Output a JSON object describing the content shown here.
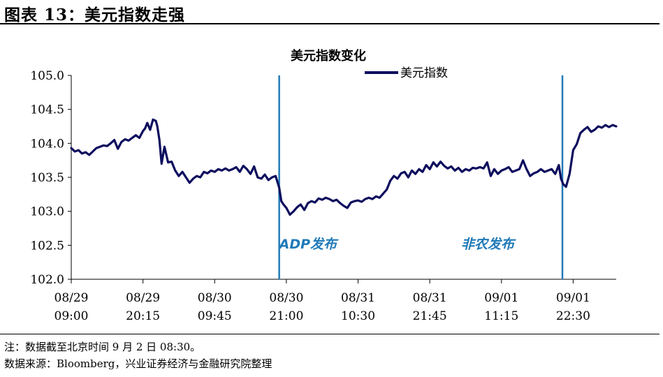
{
  "header": {
    "figure_title": "图表 13：美元指数走强"
  },
  "chart_data": {
    "type": "line",
    "title": "美元指数变化",
    "legend": [
      "美元指数"
    ],
    "legend_position": "top-center",
    "ylim": [
      102.0,
      105.0
    ],
    "yticks": [
      "105.0",
      "104.5",
      "104.0",
      "103.5",
      "103.0",
      "102.5",
      "102.0"
    ],
    "ytick_values": [
      105.0,
      104.5,
      104.0,
      103.5,
      103.0,
      102.5,
      102.0
    ],
    "xticks": [
      {
        "date": "08/29",
        "time": "09:00"
      },
      {
        "date": "08/29",
        "time": "20:15"
      },
      {
        "date": "08/30",
        "time": "09:45"
      },
      {
        "date": "08/30",
        "time": "21:00"
      },
      {
        "date": "08/31",
        "time": "10:30"
      },
      {
        "date": "08/31",
        "time": "21:45"
      },
      {
        "date": "09/01",
        "time": "11:15"
      },
      {
        "date": "09/01",
        "time": "22:30"
      }
    ],
    "x_range": [
      0,
      76
    ],
    "tick_positions": [
      0,
      10,
      20,
      30,
      40,
      50,
      60,
      70
    ],
    "annotations": [
      {
        "label": "ADP发布",
        "x": 29,
        "color": "#1f7ab8"
      },
      {
        "label": "非农发布",
        "x": 68.5,
        "color": "#1f7ab8"
      }
    ],
    "series": [
      {
        "name": "美元指数",
        "color": "#0d0d5e",
        "x": [
          0,
          0.5,
          1,
          1.5,
          2,
          2.5,
          3,
          3.5,
          4,
          4.5,
          5,
          5.5,
          6,
          6.5,
          7,
          7.5,
          8,
          8.5,
          9,
          9.5,
          10,
          10.3,
          10.6,
          11,
          11.4,
          11.8,
          12,
          12.3,
          12.6,
          13,
          13.5,
          14,
          14.5,
          15,
          15.5,
          16,
          16.5,
          17,
          17.5,
          18,
          18.5,
          19,
          19.5,
          20,
          20.5,
          21,
          21.5,
          22,
          22.5,
          23,
          23.5,
          24,
          24.5,
          25,
          25.5,
          26,
          26.5,
          27,
          27.5,
          28,
          28.5,
          29,
          29.3,
          29.6,
          30,
          30.5,
          31,
          31.5,
          32,
          32.5,
          33,
          33.5,
          34,
          34.5,
          35,
          35.5,
          36,
          36.5,
          37,
          37.5,
          38,
          38.5,
          39,
          39.5,
          40,
          40.5,
          41,
          41.5,
          42,
          42.5,
          43,
          43.5,
          44,
          44.5,
          45,
          45.5,
          46,
          46.5,
          47,
          47.5,
          48,
          48.5,
          49,
          49.5,
          50,
          50.5,
          51,
          51.5,
          52,
          52.5,
          53,
          53.5,
          54,
          54.5,
          55,
          55.5,
          56,
          56.5,
          57,
          57.5,
          58,
          58.5,
          59,
          59.5,
          60,
          60.5,
          61,
          61.5,
          62,
          62.5,
          63,
          63.5,
          64,
          64.5,
          65,
          65.5,
          66,
          66.5,
          67,
          67.5,
          68,
          68.3,
          68.6,
          69,
          69.5,
          70,
          70.5,
          71,
          71.5,
          72,
          72.5,
          73,
          73.5,
          74,
          74.5,
          75,
          75.5,
          76
        ],
        "values": [
          103.93,
          103.88,
          103.9,
          103.85,
          103.87,
          103.83,
          103.88,
          103.93,
          103.95,
          103.97,
          103.96,
          104.0,
          104.05,
          103.92,
          104.02,
          104.06,
          104.04,
          104.08,
          104.12,
          104.08,
          104.18,
          104.22,
          104.3,
          104.2,
          104.35,
          104.33,
          104.25,
          104.05,
          103.7,
          103.95,
          103.72,
          103.73,
          103.6,
          103.52,
          103.58,
          103.5,
          103.42,
          103.48,
          103.52,
          103.5,
          103.58,
          103.56,
          103.6,
          103.58,
          103.62,
          103.6,
          103.63,
          103.6,
          103.62,
          103.65,
          103.58,
          103.67,
          103.62,
          103.55,
          103.66,
          103.5,
          103.48,
          103.54,
          103.46,
          103.5,
          103.52,
          103.35,
          103.15,
          103.1,
          103.05,
          102.95,
          103.0,
          103.06,
          103.1,
          103.02,
          103.12,
          103.15,
          103.13,
          103.19,
          103.17,
          103.2,
          103.18,
          103.15,
          103.17,
          103.12,
          103.08,
          103.05,
          103.13,
          103.15,
          103.16,
          103.14,
          103.18,
          103.2,
          103.18,
          103.22,
          103.2,
          103.26,
          103.32,
          103.45,
          103.52,
          103.48,
          103.56,
          103.58,
          103.5,
          103.6,
          103.55,
          103.62,
          103.58,
          103.68,
          103.62,
          103.72,
          103.66,
          103.73,
          103.67,
          103.63,
          103.66,
          103.6,
          103.64,
          103.58,
          103.62,
          103.6,
          103.64,
          103.63,
          103.65,
          103.63,
          103.72,
          103.52,
          103.62,
          103.55,
          103.6,
          103.62,
          103.65,
          103.58,
          103.6,
          103.62,
          103.75,
          103.62,
          103.52,
          103.56,
          103.58,
          103.62,
          103.58,
          103.6,
          103.62,
          103.55,
          103.68,
          103.48,
          103.4,
          103.36,
          103.55,
          103.9,
          103.99,
          104.15,
          104.2,
          104.24,
          104.17,
          104.2,
          104.25,
          104.23,
          104.27,
          104.24,
          104.27,
          104.25
        ]
      }
    ]
  },
  "notes": {
    "line1": "注：数据截至北京时间 9 月 2 日 08:30。",
    "line2": "数据来源：Bloomberg，兴业证券经济与金融研究院整理"
  }
}
